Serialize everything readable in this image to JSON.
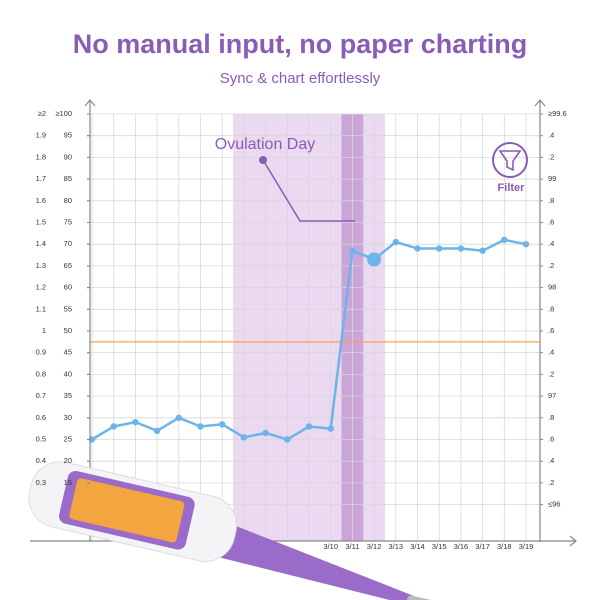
{
  "title": "No manual input, no paper charting",
  "subtitle": "Sync & chart effortlessly",
  "filter": "Filter",
  "chart_data": {
    "type": "line",
    "annotation": "Ovulation Day",
    "categories": [
      null,
      null,
      null,
      null,
      null,
      null,
      null,
      null,
      null,
      null,
      null,
      "3/10",
      "3/11",
      "3/12",
      "3/13",
      "3/14",
      "3/15",
      "3/16",
      "3/17",
      "3/18",
      "3/19"
    ],
    "series": [
      {
        "color": "#6cb4ea",
        "axis": "y2",
        "values": [
          96.6,
          96.72,
          96.76,
          96.68,
          96.8,
          96.72,
          96.74,
          96.62,
          96.66,
          96.6,
          96.72,
          96.7,
          98.34,
          98.26,
          98.42,
          98.36,
          98.36,
          98.36,
          98.34,
          98.44,
          98.4
        ]
      }
    ],
    "ovulation_index": 12,
    "fertile_window": [
      7,
      13
    ],
    "coverline": 97.5,
    "coverline_color": "#f5a54a",
    "ylim": [
      0.3,
      2
    ],
    "yticks": [
      {
        "value": 2,
        "label": "≥2"
      },
      1.9,
      1.8,
      1.7,
      1.6,
      1.5,
      1.4,
      1.3,
      1.2,
      1.1,
      1,
      0.9,
      0.8,
      0.7,
      0.6,
      0.5,
      0.4,
      0.3
    ],
    "y3lim": [
      15,
      100
    ],
    "y3ticks": [
      {
        "value": 100,
        "label": "≥100"
      },
      95,
      90,
      85,
      80,
      75,
      70,
      65,
      60,
      55,
      50,
      45,
      40,
      35,
      30,
      25,
      20,
      15
    ],
    "y2lim": [
      96,
      99.6
    ],
    "y2ticks": [
      {
        "value": 99.6,
        "label": "≥99.6"
      },
      {
        "value": 99.4,
        "label": ".4"
      },
      {
        "value": 99.2,
        "label": ".2"
      },
      99,
      {
        "value": 98.8,
        "label": ".8"
      },
      {
        "value": 98.6,
        "label": ".6"
      },
      {
        "value": 98.4,
        "label": ".4"
      },
      {
        "value": 98.2,
        "label": ".2"
      },
      98,
      {
        "value": 97.8,
        "label": ".8"
      },
      {
        "value": 97.6,
        "label": ".6"
      },
      {
        "value": 97.4,
        "label": ".4"
      },
      {
        "value": 97.2,
        "label": ".2"
      },
      97,
      {
        "value": 96.8,
        "label": ".8"
      },
      {
        "value": 96.6,
        "label": ".6"
      },
      {
        "value": 96.4,
        "label": ".4"
      },
      {
        "value": 96.2,
        "label": ".2"
      },
      {
        "value": 96,
        "label": "≤96"
      }
    ],
    "grid": true
  }
}
